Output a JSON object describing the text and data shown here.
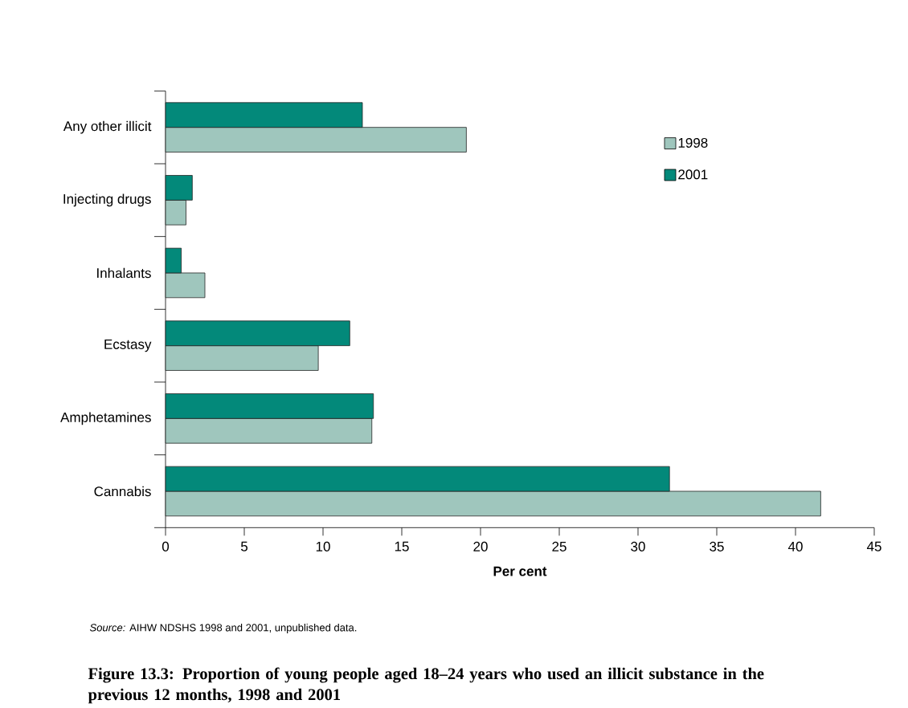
{
  "chart_data": {
    "type": "bar",
    "orientation": "horizontal",
    "title": "Figure 13.3: Proportion of young people aged 18–24 years who used an illicit substance in the previous 12 months, 1998 and 2001",
    "xlabel": "Per cent",
    "annotations": [
      "*Source:* AIHW NDSHS 1998 and 2001, unpublished data."
    ],
    "categories": [
      "Any other illicit",
      "Injecting drugs",
      "Inhalants",
      "Ecstasy",
      "Amphetamines",
      "Cannabis"
    ],
    "series": [
      {
        "name": "1998",
        "color": "#9fc6bd",
        "values": [
          19.1,
          1.3,
          2.5,
          9.7,
          13.1,
          41.6
        ]
      },
      {
        "name": "2001",
        "color": "#03897a",
        "values": [
          12.5,
          1.7,
          1.0,
          11.7,
          13.2,
          32.0
        ]
      }
    ],
    "xlim": [
      0,
      45
    ],
    "xticks": [
      0,
      5,
      10,
      15,
      20,
      25,
      30,
      35,
      40,
      45
    ],
    "legend": "top right"
  }
}
